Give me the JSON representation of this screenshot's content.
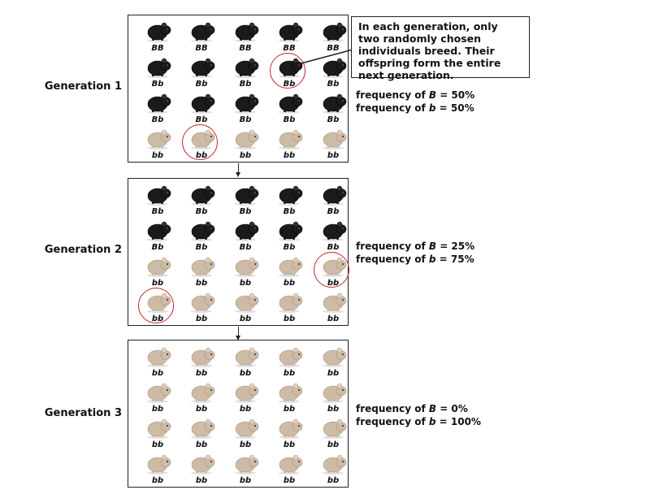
{
  "callout": {
    "text": "In each generation, only two randomly chosen individuals breed. Their offspring form the entire next generation."
  },
  "generations": [
    {
      "label": "Generation 1",
      "freq_B_prefix": "frequency of ",
      "freq_B_allele": "B",
      "freq_B_value": " = 50%",
      "freq_b_prefix": "frequency of ",
      "freq_b_allele": "b",
      "freq_b_value": " = 50%",
      "rows": [
        [
          {
            "g": "BB"
          },
          {
            "g": "BB"
          },
          {
            "g": "BB"
          },
          {
            "g": "BB"
          },
          {
            "g": "BB"
          }
        ],
        [
          {
            "g": "Bb"
          },
          {
            "g": "Bb"
          },
          {
            "g": "Bb"
          },
          {
            "g": "Bb",
            "chosen": true
          },
          {
            "g": "Bb"
          }
        ],
        [
          {
            "g": "Bb"
          },
          {
            "g": "Bb"
          },
          {
            "g": "Bb"
          },
          {
            "g": "Bb"
          },
          {
            "g": "Bb"
          }
        ],
        [
          {
            "g": "bb"
          },
          {
            "g": "bb",
            "chosen": true
          },
          {
            "g": "bb"
          },
          {
            "g": "bb"
          },
          {
            "g": "bb"
          }
        ]
      ]
    },
    {
      "label": "Generation 2",
      "freq_B_prefix": "frequency of ",
      "freq_B_allele": "B",
      "freq_B_value": " = 25%",
      "freq_b_prefix": "frequency of ",
      "freq_b_allele": "b",
      "freq_b_value": " = 75%",
      "rows": [
        [
          {
            "g": "Bb"
          },
          {
            "g": "Bb"
          },
          {
            "g": "Bb"
          },
          {
            "g": "Bb"
          },
          {
            "g": "Bb"
          }
        ],
        [
          {
            "g": "Bb"
          },
          {
            "g": "Bb"
          },
          {
            "g": "Bb"
          },
          {
            "g": "Bb"
          },
          {
            "g": "Bb"
          }
        ],
        [
          {
            "g": "bb"
          },
          {
            "g": "bb"
          },
          {
            "g": "bb"
          },
          {
            "g": "bb"
          },
          {
            "g": "bb",
            "chosen": true
          }
        ],
        [
          {
            "g": "bb",
            "chosen": true
          },
          {
            "g": "bb"
          },
          {
            "g": "bb"
          },
          {
            "g": "bb"
          },
          {
            "g": "bb"
          }
        ]
      ]
    },
    {
      "label": "Generation 3",
      "freq_B_prefix": "frequency of ",
      "freq_B_allele": "B",
      "freq_B_value": " = 0%",
      "freq_b_prefix": "frequency of ",
      "freq_b_allele": "b",
      "freq_b_value": " = 100%",
      "rows": [
        [
          {
            "g": "bb"
          },
          {
            "g": "bb"
          },
          {
            "g": "bb"
          },
          {
            "g": "bb"
          },
          {
            "g": "bb"
          }
        ],
        [
          {
            "g": "bb"
          },
          {
            "g": "bb"
          },
          {
            "g": "bb"
          },
          {
            "g": "bb"
          },
          {
            "g": "bb"
          }
        ],
        [
          {
            "g": "bb"
          },
          {
            "g": "bb"
          },
          {
            "g": "bb"
          },
          {
            "g": "bb"
          },
          {
            "g": "bb"
          }
        ],
        [
          {
            "g": "bb"
          },
          {
            "g": "bb"
          },
          {
            "g": "bb"
          },
          {
            "g": "bb"
          },
          {
            "g": "bb"
          }
        ]
      ]
    }
  ],
  "colors": {
    "dark_mouse": "#1b1b1b",
    "light_mouse": "#cdbba6",
    "highlight_circle": "#c0262d"
  }
}
